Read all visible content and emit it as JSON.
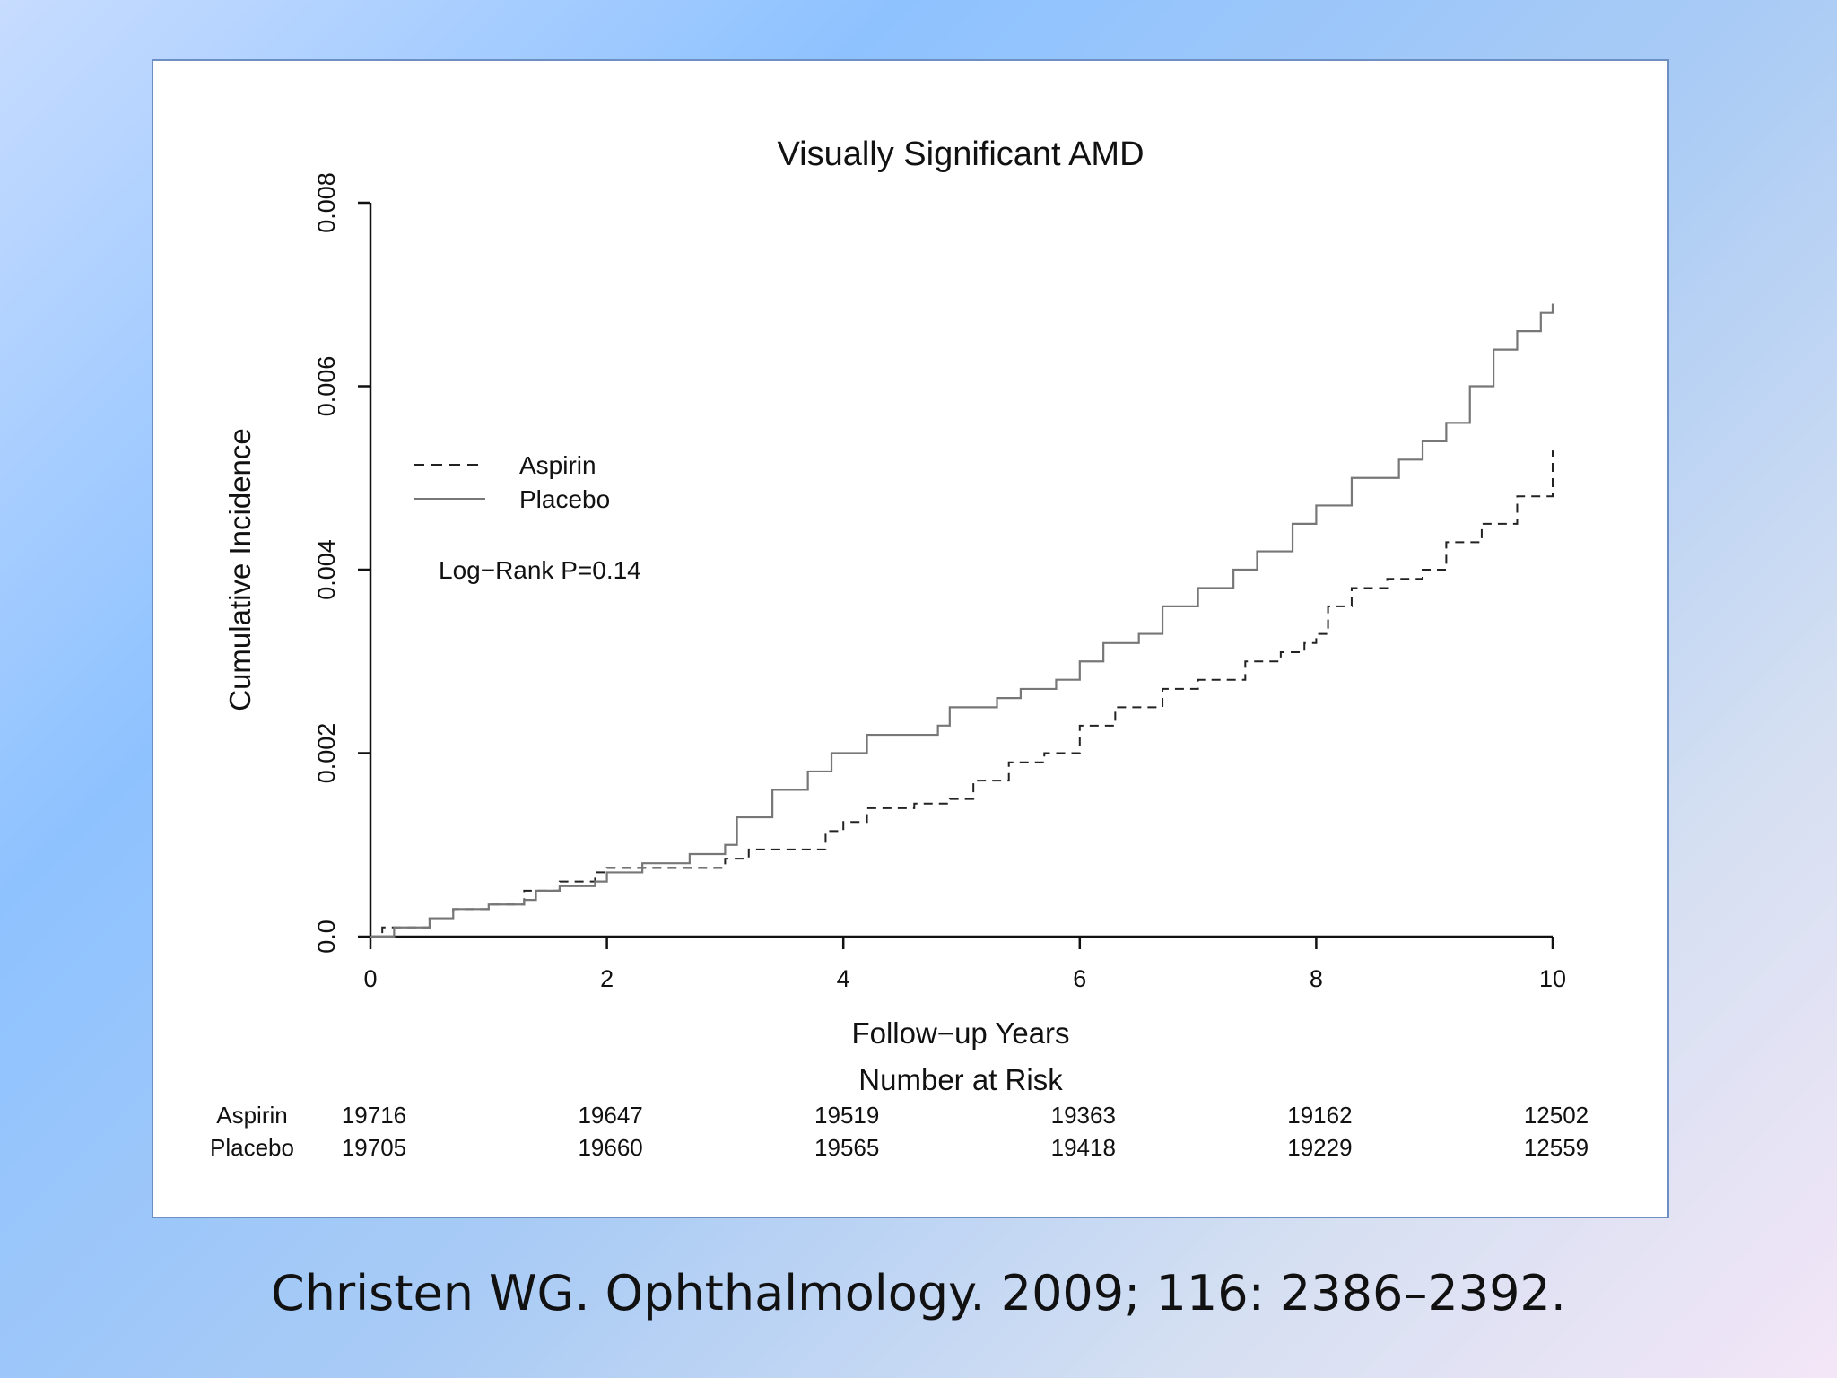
{
  "slide": {
    "citation": "Christen WG. Ophthalmology. 2009; 116: 2386–2392."
  },
  "chart_data": {
    "type": "line",
    "title": "Visually Significant AMD",
    "xlabel": "Follow−up Years",
    "ylabel": "Cumulative Incidence",
    "xlim": [
      0,
      10
    ],
    "ylim": [
      0,
      0.008
    ],
    "x_ticks": [
      0,
      2,
      4,
      6,
      8,
      10
    ],
    "x_tick_labels": [
      "0",
      "2",
      "4",
      "6",
      "8",
      "10"
    ],
    "y_ticks": [
      0,
      0.002,
      0.004,
      0.006,
      0.008
    ],
    "y_tick_labels": [
      "0.0",
      "0.002",
      "0.004",
      "0.006",
      "0.008"
    ],
    "grid": false,
    "legend_position": "upper-left",
    "annotation": "Log−Rank P=0.14",
    "series": [
      {
        "name": "Aspirin",
        "line_style": "dashed",
        "color": "#222222",
        "points": [
          [
            0,
            0
          ],
          [
            0.1,
            0.0001
          ],
          [
            0.45,
            0.0001
          ],
          [
            0.5,
            0.0002
          ],
          [
            0.7,
            0.0003
          ],
          [
            1.0,
            0.00035
          ],
          [
            1.3,
            0.0005
          ],
          [
            1.6,
            0.0006
          ],
          [
            1.9,
            0.0007
          ],
          [
            2.0,
            0.00075
          ],
          [
            2.9,
            0.00075
          ],
          [
            3.0,
            0.00085
          ],
          [
            3.2,
            0.00095
          ],
          [
            3.7,
            0.00095
          ],
          [
            3.85,
            0.00115
          ],
          [
            4.0,
            0.00125
          ],
          [
            4.2,
            0.0014
          ],
          [
            4.6,
            0.00145
          ],
          [
            4.9,
            0.0015
          ],
          [
            5.1,
            0.0017
          ],
          [
            5.4,
            0.0019
          ],
          [
            5.7,
            0.002
          ],
          [
            6.0,
            0.0023
          ],
          [
            6.3,
            0.0025
          ],
          [
            6.7,
            0.0027
          ],
          [
            7.0,
            0.0028
          ],
          [
            7.4,
            0.003
          ],
          [
            7.7,
            0.0031
          ],
          [
            7.9,
            0.0032
          ],
          [
            8.0,
            0.0033
          ],
          [
            8.1,
            0.0036
          ],
          [
            8.3,
            0.0038
          ],
          [
            8.6,
            0.0039
          ],
          [
            8.9,
            0.004
          ],
          [
            9.1,
            0.0043
          ],
          [
            9.4,
            0.0045
          ],
          [
            9.7,
            0.0048
          ],
          [
            10.0,
            0.0053
          ]
        ]
      },
      {
        "name": "Placebo",
        "line_style": "solid",
        "color": "#777777",
        "points": [
          [
            0,
            0
          ],
          [
            0.2,
            0.0001
          ],
          [
            0.5,
            0.0002
          ],
          [
            0.7,
            0.0003
          ],
          [
            1.0,
            0.00035
          ],
          [
            1.3,
            0.0004
          ],
          [
            1.4,
            0.0005
          ],
          [
            1.6,
            0.00055
          ],
          [
            1.9,
            0.0006
          ],
          [
            2.0,
            0.0007
          ],
          [
            2.3,
            0.0008
          ],
          [
            2.7,
            0.0009
          ],
          [
            3.0,
            0.001
          ],
          [
            3.1,
            0.0013
          ],
          [
            3.4,
            0.0016
          ],
          [
            3.7,
            0.0018
          ],
          [
            3.9,
            0.002
          ],
          [
            4.2,
            0.0022
          ],
          [
            4.8,
            0.0023
          ],
          [
            4.9,
            0.0025
          ],
          [
            5.3,
            0.0026
          ],
          [
            5.5,
            0.0027
          ],
          [
            5.8,
            0.0028
          ],
          [
            6.0,
            0.003
          ],
          [
            6.2,
            0.0032
          ],
          [
            6.5,
            0.0033
          ],
          [
            6.7,
            0.0036
          ],
          [
            7.0,
            0.0038
          ],
          [
            7.3,
            0.004
          ],
          [
            7.5,
            0.0042
          ],
          [
            7.8,
            0.0045
          ],
          [
            8.0,
            0.0047
          ],
          [
            8.3,
            0.005
          ],
          [
            8.7,
            0.0052
          ],
          [
            8.9,
            0.0054
          ],
          [
            9.1,
            0.0056
          ],
          [
            9.3,
            0.006
          ],
          [
            9.5,
            0.0064
          ],
          [
            9.7,
            0.0066
          ],
          [
            9.9,
            0.0068
          ],
          [
            10.0,
            0.0069
          ]
        ]
      }
    ],
    "number_at_risk": {
      "title": "Number at Risk",
      "rows": [
        {
          "label": "Aspirin",
          "values": [
            "19716",
            "19647",
            "19519",
            "19363",
            "19162",
            "12502"
          ]
        },
        {
          "label": "Placebo",
          "values": [
            "19705",
            "19660",
            "19565",
            "19418",
            "19229",
            "12559"
          ]
        }
      ]
    }
  }
}
